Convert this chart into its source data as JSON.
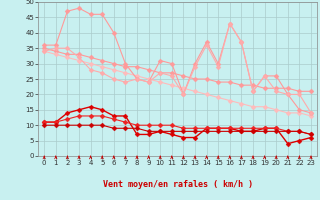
{
  "xlabel": "Vent moyen/en rafales ( km/h )",
  "background_color": "#c8f0f0",
  "grid_color": "#aacccc",
  "xlim": [
    -0.5,
    23.5
  ],
  "ylim": [
    0,
    50
  ],
  "yticks": [
    0,
    5,
    10,
    15,
    20,
    25,
    30,
    35,
    40,
    45,
    50
  ],
  "xticks": [
    0,
    1,
    2,
    3,
    4,
    5,
    6,
    7,
    8,
    9,
    10,
    11,
    12,
    13,
    14,
    15,
    16,
    17,
    18,
    19,
    20,
    21,
    22,
    23
  ],
  "hours": [
    0,
    1,
    2,
    3,
    4,
    5,
    6,
    7,
    8,
    9,
    10,
    11,
    12,
    13,
    14,
    15,
    16,
    17,
    18,
    19,
    20,
    21,
    22,
    23
  ],
  "line_jagged1": [
    36,
    36,
    47,
    48,
    46,
    46,
    40,
    30,
    25,
    24,
    31,
    30,
    20,
    30,
    37,
    30,
    43,
    37,
    21,
    26,
    26,
    20,
    15,
    14
  ],
  "line_jagged1_color": "#ff9999",
  "line_jagged2": [
    34,
    35,
    35,
    32,
    28,
    27,
    25,
    24,
    25,
    24,
    27,
    26,
    20,
    29,
    36,
    29,
    43,
    37,
    21,
    26,
    21,
    20,
    20,
    14
  ],
  "line_jagged2_color": "#ffaaaa",
  "line_trend1": [
    35,
    34,
    33,
    33,
    32,
    31,
    30,
    29,
    29,
    28,
    27,
    27,
    26,
    25,
    25,
    24,
    24,
    23,
    23,
    22,
    22,
    22,
    21,
    21
  ],
  "line_trend1_color": "#ff9999",
  "line_trend2": [
    34,
    33,
    32,
    31,
    30,
    29,
    28,
    27,
    26,
    25,
    24,
    23,
    22,
    21,
    20,
    19,
    18,
    17,
    16,
    16,
    15,
    14,
    14,
    13
  ],
  "line_trend2_color": "#ffbbbb",
  "line_raw": [
    11,
    11,
    14,
    15,
    16,
    15,
    13,
    13,
    7,
    7,
    8,
    7,
    6,
    6,
    9,
    9,
    9,
    8,
    8,
    9,
    9,
    4,
    5,
    6
  ],
  "line_raw_color": "#dd0000",
  "line_mean1": [
    11,
    11,
    12,
    13,
    13,
    13,
    12,
    11,
    10,
    10,
    10,
    10,
    9,
    9,
    9,
    9,
    9,
    9,
    9,
    9,
    9,
    8,
    8,
    7
  ],
  "line_mean1_color": "#ee2222",
  "line_mean2": [
    10,
    10,
    10,
    10,
    10,
    10,
    9,
    9,
    9,
    8,
    8,
    8,
    8,
    8,
    8,
    8,
    8,
    8,
    8,
    8,
    8,
    8,
    8,
    7
  ],
  "line_mean2_color": "#cc0000",
  "arrow_color": "#cc0000",
  "marker_size": 2.5,
  "linewidth": 0.8
}
